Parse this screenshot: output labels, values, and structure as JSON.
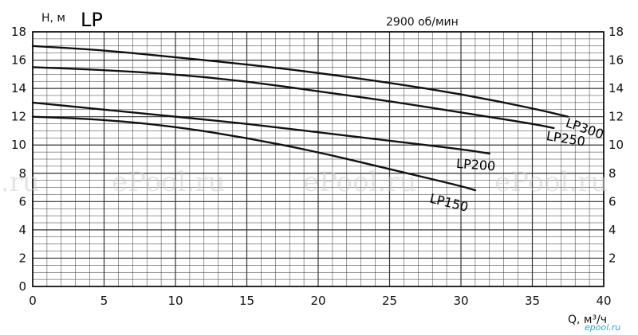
{
  "chart_data": {
    "type": "line",
    "title": "LP",
    "subtitle": "2900 об/мин",
    "xlabel": "Q, м³/ч",
    "ylabel": "H, м",
    "xlim": [
      0,
      40
    ],
    "ylim": [
      0,
      18
    ],
    "x_ticks": [
      0,
      5,
      10,
      15,
      20,
      25,
      30,
      35,
      40
    ],
    "y_ticks": [
      0,
      2,
      4,
      6,
      8,
      10,
      12,
      14,
      16,
      18
    ],
    "y_ticks_right": [
      2,
      4,
      6,
      8,
      10,
      12,
      14,
      16,
      18
    ],
    "grid": true,
    "series": [
      {
        "name": "LP300",
        "x": [
          0,
          5,
          10,
          15,
          20,
          25,
          30,
          35,
          37.5
        ],
        "y": [
          17.0,
          16.7,
          16.2,
          15.7,
          15.1,
          14.4,
          13.6,
          12.6,
          12.0
        ]
      },
      {
        "name": "LP250",
        "x": [
          0,
          5,
          10,
          15,
          20,
          25,
          30,
          35,
          36.5
        ],
        "y": [
          15.5,
          15.3,
          15.0,
          14.5,
          13.8,
          13.1,
          12.3,
          11.5,
          11.2
        ]
      },
      {
        "name": "LP200",
        "x": [
          0,
          5,
          10,
          15,
          20,
          25,
          30,
          32
        ],
        "y": [
          13.0,
          12.5,
          12.0,
          11.5,
          10.9,
          10.3,
          9.7,
          9.4
        ]
      },
      {
        "name": "LP150",
        "x": [
          0,
          5,
          10,
          15,
          20,
          25,
          30,
          31
        ],
        "y": [
          12.0,
          11.8,
          11.3,
          10.5,
          9.5,
          8.3,
          7.1,
          6.8
        ]
      }
    ]
  },
  "watermarks": [
    "l.ru",
    "ePool.ru",
    "ePool.ru",
    "ePool.ru"
  ],
  "logo_text": "epool.ru",
  "colors": {
    "curve": "#111111",
    "grid": "#333333",
    "watermark": "#cfcfcf",
    "logo": "#2aa6d9"
  }
}
